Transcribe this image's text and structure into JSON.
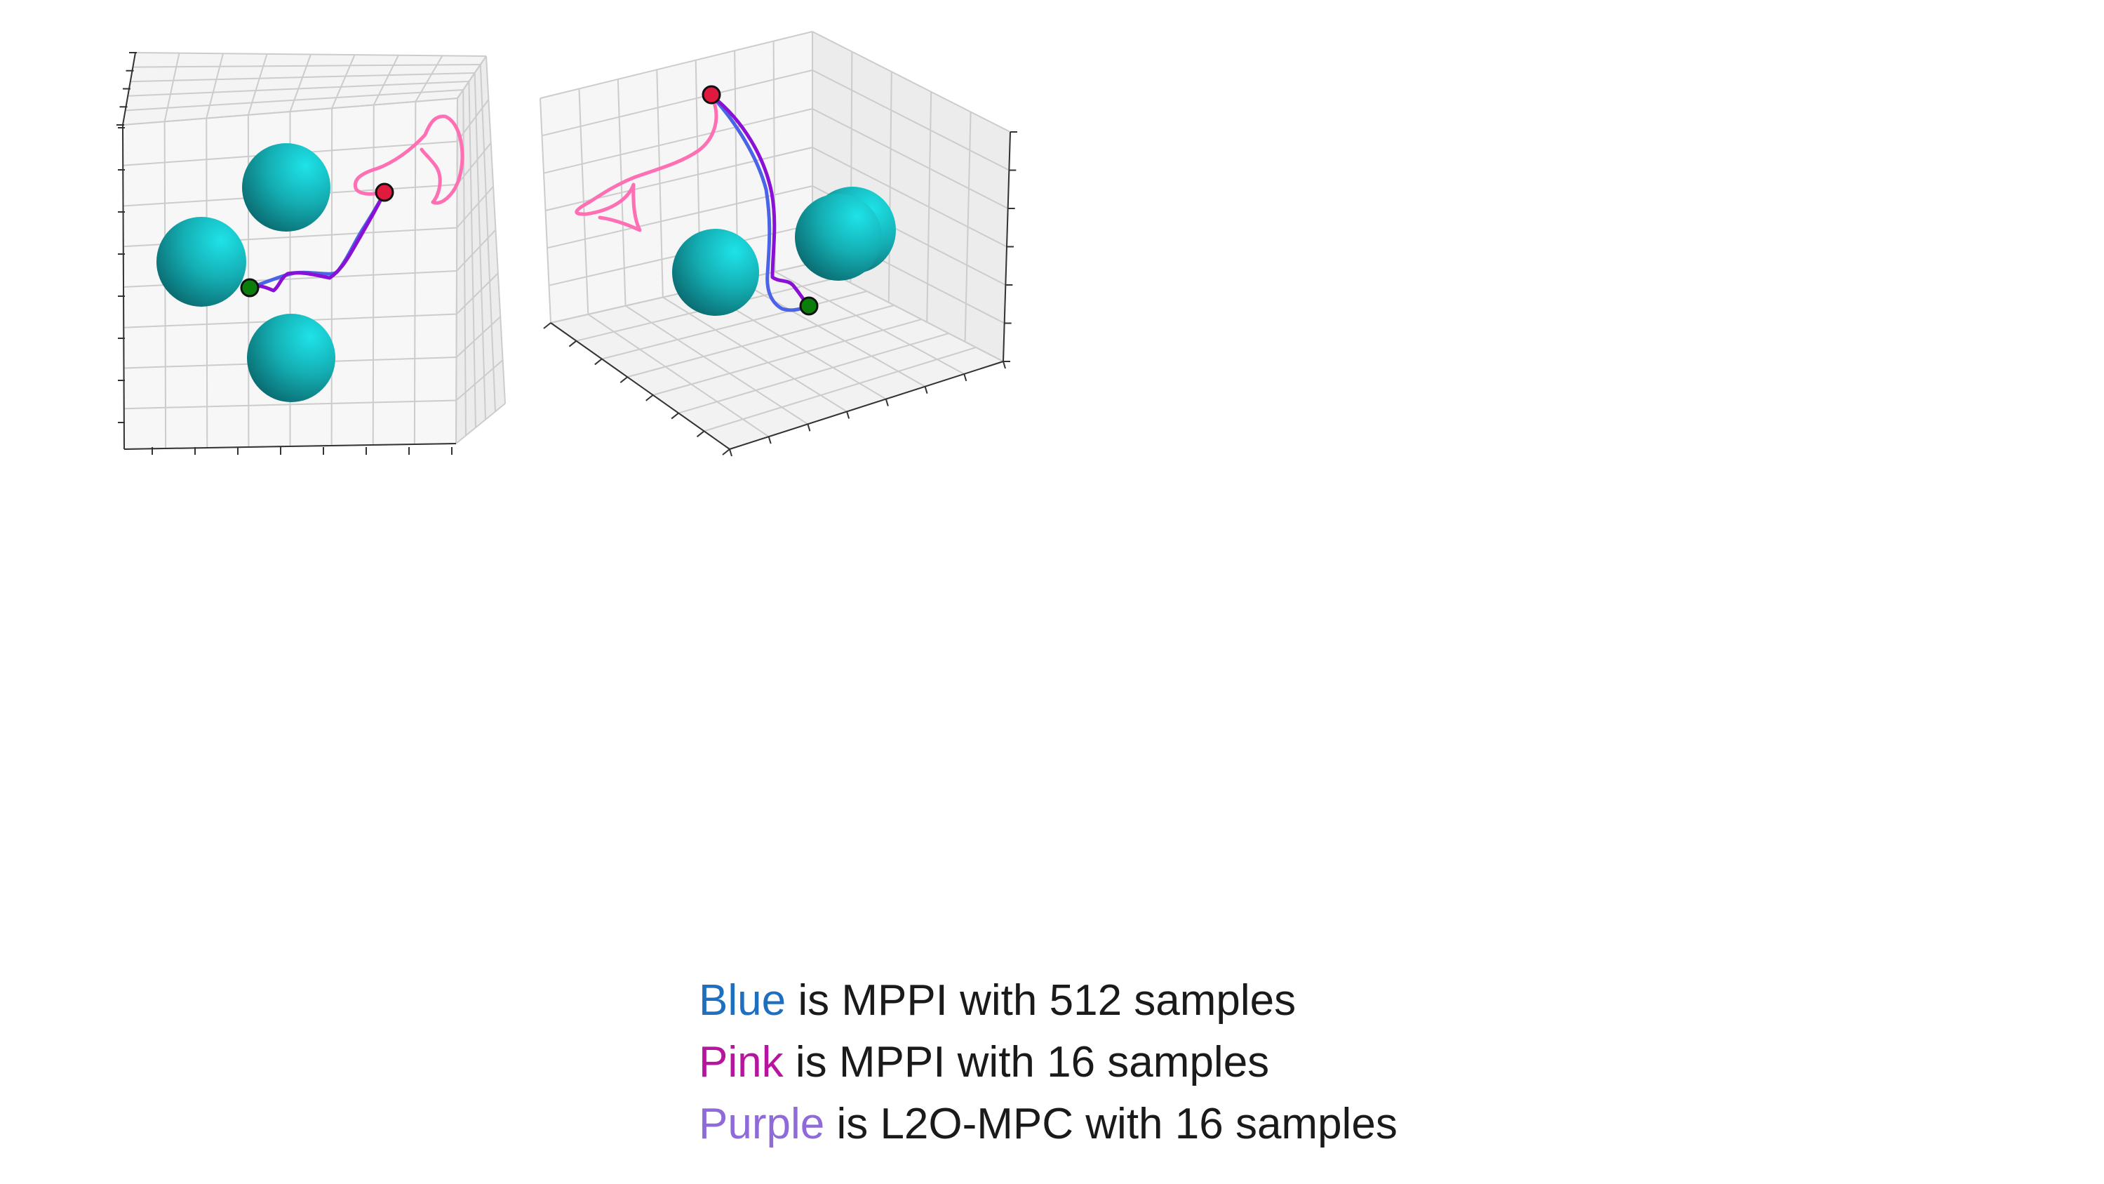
{
  "chart_data": [
    {
      "type": "3d-trajectory",
      "view": "top-down",
      "grid": true,
      "obstacles": [
        {
          "name": "sphere",
          "shape": "sphere",
          "color": "#17b7bd"
        },
        {
          "name": "sphere",
          "shape": "sphere",
          "color": "#17b7bd"
        },
        {
          "name": "sphere",
          "shape": "sphere",
          "color": "#17b7bd"
        }
      ],
      "start_marker": {
        "color": "#0b7d0b"
      },
      "goal_marker": {
        "color": "#e0193f"
      },
      "series": [
        {
          "key": "blue",
          "color": "#4b63e6"
        },
        {
          "key": "pink",
          "color": "#ff6fb3"
        },
        {
          "key": "purple",
          "color": "#8a10d6"
        }
      ]
    },
    {
      "type": "3d-trajectory",
      "view": "perspective",
      "grid": true,
      "obstacles": [
        {
          "name": "sphere",
          "shape": "sphere",
          "color": "#17b7bd"
        },
        {
          "name": "sphere",
          "shape": "sphere",
          "color": "#17b7bd"
        },
        {
          "name": "sphere",
          "shape": "sphere",
          "color": "#17b7bd"
        }
      ],
      "start_marker": {
        "color": "#0b7d0b"
      },
      "goal_marker": {
        "color": "#e0193f"
      },
      "series": [
        {
          "key": "blue",
          "color": "#4b63e6"
        },
        {
          "key": "pink",
          "color": "#ff6fb3"
        },
        {
          "key": "purple",
          "color": "#8a10d6"
        }
      ]
    }
  ],
  "legend": {
    "items": [
      {
        "color_word": "Blue",
        "rest": " is MPPI with 512 samples",
        "word_color": "#1f6fc0"
      },
      {
        "color_word": "Pink",
        "rest": " is MPPI with 16 samples",
        "word_color": "#b5169c"
      },
      {
        "color_word": "Purple",
        "rest": " is L2O-MPC with 16 samples",
        "word_color": "#8e6bd8"
      }
    ]
  }
}
